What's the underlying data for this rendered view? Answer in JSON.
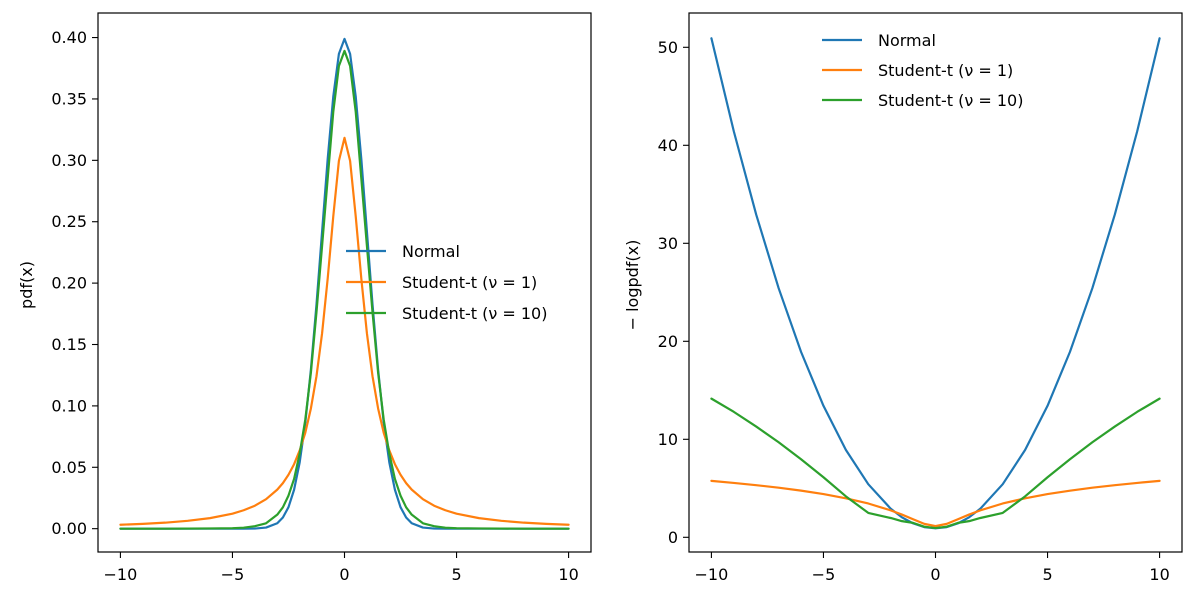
{
  "chart_data": [
    {
      "type": "line",
      "xlabel": "",
      "ylabel": "pdf(x)",
      "xlim": [
        -11.0,
        11.0
      ],
      "ylim": [
        -0.019,
        0.42
      ],
      "x_ticks": [
        {
          "value": -10,
          "label": "−10"
        },
        {
          "value": -5,
          "label": "−5"
        },
        {
          "value": 0,
          "label": "0"
        },
        {
          "value": 5,
          "label": "5"
        },
        {
          "value": 10,
          "label": "10"
        }
      ],
      "y_ticks": [
        {
          "value": 0.0,
          "label": "0.00"
        },
        {
          "value": 0.05,
          "label": "0.05"
        },
        {
          "value": 0.1,
          "label": "0.10"
        },
        {
          "value": 0.15,
          "label": "0.15"
        },
        {
          "value": 0.2,
          "label": "0.20"
        },
        {
          "value": 0.25,
          "label": "0.25"
        },
        {
          "value": 0.3,
          "label": "0.30"
        },
        {
          "value": 0.35,
          "label": "0.35"
        },
        {
          "value": 0.4,
          "label": "0.40"
        }
      ],
      "legend_position": "center-right",
      "x": [
        -10,
        -9,
        -8,
        -7,
        -6,
        -5,
        -4.5,
        -4,
        -3.5,
        -3,
        -2.75,
        -2.5,
        -2.25,
        -2,
        -1.75,
        -1.5,
        -1.25,
        -1,
        -0.75,
        -0.5,
        -0.25,
        0,
        0.25,
        0.5,
        0.75,
        1,
        1.25,
        1.5,
        1.75,
        2,
        2.25,
        2.5,
        2.75,
        3,
        3.5,
        4,
        4.5,
        5,
        6,
        7,
        8,
        9,
        10
      ],
      "series": [
        {
          "name": "Normal",
          "color": "#1f77b4",
          "values": [
            0.0,
            0.0,
            0.0,
            0.0,
            0.0,
            0.0,
            0.0,
            0.0001,
            0.0009,
            0.0044,
            0.0091,
            0.0175,
            0.0317,
            0.054,
            0.0863,
            0.1295,
            0.1826,
            0.242,
            0.3011,
            0.3521,
            0.3867,
            0.3989,
            0.3867,
            0.3521,
            0.3011,
            0.242,
            0.1826,
            0.1295,
            0.0863,
            0.054,
            0.0317,
            0.0175,
            0.0091,
            0.0044,
            0.0009,
            0.0001,
            0.0,
            0.0,
            0.0,
            0.0,
            0.0,
            0.0,
            0.0
          ]
        },
        {
          "name": "Student-t (ν = 1)",
          "color": "#ff7f0e",
          "values": [
            0.0032,
            0.0039,
            0.0049,
            0.0064,
            0.0086,
            0.0122,
            0.015,
            0.0187,
            0.024,
            0.0318,
            0.0371,
            0.0439,
            0.0525,
            0.0637,
            0.0781,
            0.0979,
            0.1242,
            0.1592,
            0.2037,
            0.2546,
            0.2996,
            0.3183,
            0.2996,
            0.2546,
            0.2037,
            0.1592,
            0.1242,
            0.0979,
            0.0781,
            0.0637,
            0.0525,
            0.0439,
            0.0371,
            0.0318,
            0.024,
            0.0187,
            0.015,
            0.0122,
            0.0086,
            0.0064,
            0.0049,
            0.0039,
            0.0032
          ]
        },
        {
          "name": "Student-t (ν = 10)",
          "color": "#2ca02c",
          "values": [
            0.0,
            0.0,
            0.0,
            0.0001,
            0.0002,
            0.0004,
            0.0008,
            0.002,
            0.0044,
            0.0114,
            0.0174,
            0.0269,
            0.0405,
            0.0611,
            0.0888,
            0.127,
            0.1765,
            0.2304,
            0.2853,
            0.3397,
            0.3768,
            0.3891,
            0.3768,
            0.3397,
            0.2853,
            0.2304,
            0.1765,
            0.127,
            0.0888,
            0.0611,
            0.0405,
            0.0269,
            0.0174,
            0.0114,
            0.0044,
            0.002,
            0.0008,
            0.0004,
            0.0002,
            0.0001,
            0.0,
            0.0,
            0.0
          ]
        }
      ]
    },
    {
      "type": "line",
      "xlabel": "",
      "ylabel": "− logpdf(x)",
      "xlim": [
        -11.0,
        11.0
      ],
      "ylim": [
        -1.5,
        53.5
      ],
      "x_ticks": [
        {
          "value": -10,
          "label": "−10"
        },
        {
          "value": -5,
          "label": "−5"
        },
        {
          "value": 0,
          "label": "0"
        },
        {
          "value": 5,
          "label": "5"
        },
        {
          "value": 10,
          "label": "10"
        }
      ],
      "y_ticks": [
        {
          "value": 0,
          "label": "0"
        },
        {
          "value": 10,
          "label": "10"
        },
        {
          "value": 20,
          "label": "20"
        },
        {
          "value": 30,
          "label": "30"
        },
        {
          "value": 40,
          "label": "40"
        },
        {
          "value": 50,
          "label": "50"
        }
      ],
      "legend_position": "upper-center",
      "x": [
        -10,
        -9,
        -8,
        -7,
        -6,
        -5,
        -4,
        -3,
        -2,
        -1.5,
        -1,
        -0.5,
        0,
        0.5,
        1,
        1.5,
        2,
        3,
        4,
        5,
        6,
        7,
        8,
        9,
        10
      ],
      "series": [
        {
          "name": "Normal",
          "color": "#1f77b4",
          "values": [
            50.92,
            41.42,
            32.92,
            25.42,
            18.92,
            13.42,
            8.92,
            5.42,
            2.92,
            2.04,
            1.42,
            1.04,
            0.92,
            1.04,
            1.42,
            2.04,
            2.92,
            5.42,
            8.92,
            13.42,
            18.92,
            25.42,
            32.92,
            41.42,
            50.92
          ]
        },
        {
          "name": "Student-t (ν = 1)",
          "color": "#ff7f0e",
          "values": [
            5.76,
            5.55,
            5.32,
            5.06,
            4.76,
            4.41,
            3.98,
            3.45,
            2.75,
            2.32,
            1.84,
            1.37,
            1.14,
            1.37,
            1.84,
            2.32,
            2.75,
            3.45,
            3.98,
            4.41,
            4.76,
            5.06,
            5.32,
            5.55,
            5.76
          ]
        },
        {
          "name": "Student-t (ν = 10)",
          "color": "#2ca02c",
          "values": [
            14.15,
            12.8,
            11.3,
            9.7,
            7.96,
            6.13,
            4.18,
            2.49,
            1.97,
            1.65,
            1.47,
            1.08,
            0.94,
            1.08,
            1.47,
            1.65,
            1.97,
            2.49,
            4.18,
            6.13,
            7.96,
            9.7,
            11.3,
            12.8,
            14.15
          ]
        }
      ]
    }
  ]
}
